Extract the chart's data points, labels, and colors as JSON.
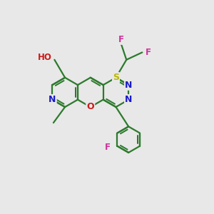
{
  "background_color": "#e8e8e8",
  "bond_color": "#2d7a2d",
  "bond_width": 1.6,
  "atom_colors": {
    "N": "#1a1acc",
    "O": "#cc1a1a",
    "S": "#b8b800",
    "F": "#cc3399",
    "C": "#2d7a2d"
  },
  "figsize": [
    3.0,
    3.0
  ],
  "dpi": 100
}
